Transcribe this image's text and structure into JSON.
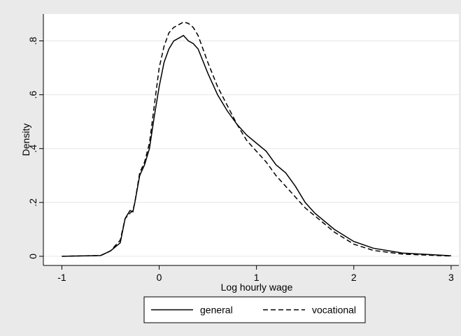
{
  "chart_data": {
    "type": "line",
    "x_label": "Log hourly wage",
    "y_label": "Density",
    "x": [
      -1,
      -0.6,
      -0.5,
      -0.4,
      -0.35,
      -0.3,
      -0.27,
      -0.25,
      -0.2,
      -0.15,
      -0.1,
      -0.05,
      0,
      0.05,
      0.1,
      0.15,
      0.2,
      0.25,
      0.3,
      0.35,
      0.4,
      0.5,
      0.6,
      0.7,
      0.8,
      0.9,
      1.0,
      1.1,
      1.2,
      1.3,
      1.4,
      1.5,
      1.6,
      1.8,
      2.0,
      2.2,
      2.5,
      3.0
    ],
    "series": [
      {
        "name": "general",
        "color": "#000000",
        "dash": "solid",
        "values": [
          0,
          0.003,
          0.02,
          0.05,
          0.14,
          0.17,
          0.165,
          0.2,
          0.3,
          0.34,
          0.4,
          0.52,
          0.63,
          0.72,
          0.77,
          0.8,
          0.81,
          0.82,
          0.8,
          0.79,
          0.77,
          0.68,
          0.6,
          0.54,
          0.49,
          0.45,
          0.42,
          0.39,
          0.34,
          0.31,
          0.26,
          0.2,
          0.16,
          0.1,
          0.055,
          0.03,
          0.012,
          0.002
        ]
      },
      {
        "name": "vocational",
        "color": "#000000",
        "dash": "dashed",
        "values": [
          0,
          0.003,
          0.02,
          0.06,
          0.14,
          0.16,
          0.17,
          0.2,
          0.31,
          0.35,
          0.42,
          0.56,
          0.7,
          0.78,
          0.83,
          0.85,
          0.86,
          0.87,
          0.865,
          0.85,
          0.82,
          0.72,
          0.63,
          0.56,
          0.49,
          0.43,
          0.39,
          0.35,
          0.3,
          0.26,
          0.22,
          0.18,
          0.15,
          0.09,
          0.045,
          0.022,
          0.008,
          0.001
        ]
      }
    ],
    "xlim": [
      -1.19,
      3.08
    ],
    "ylim": [
      -0.034,
      0.9
    ],
    "xticks": [
      -1,
      0,
      1,
      2,
      3
    ],
    "yticks": [
      0,
      {
        "value": 0.2,
        "label": ".2"
      },
      {
        "value": 0.4,
        "label": ".4"
      },
      {
        "value": 0.6,
        "label": ".6"
      },
      {
        "value": 0.8,
        "label": ".8"
      }
    ],
    "grid": true,
    "legend": "bottom"
  }
}
